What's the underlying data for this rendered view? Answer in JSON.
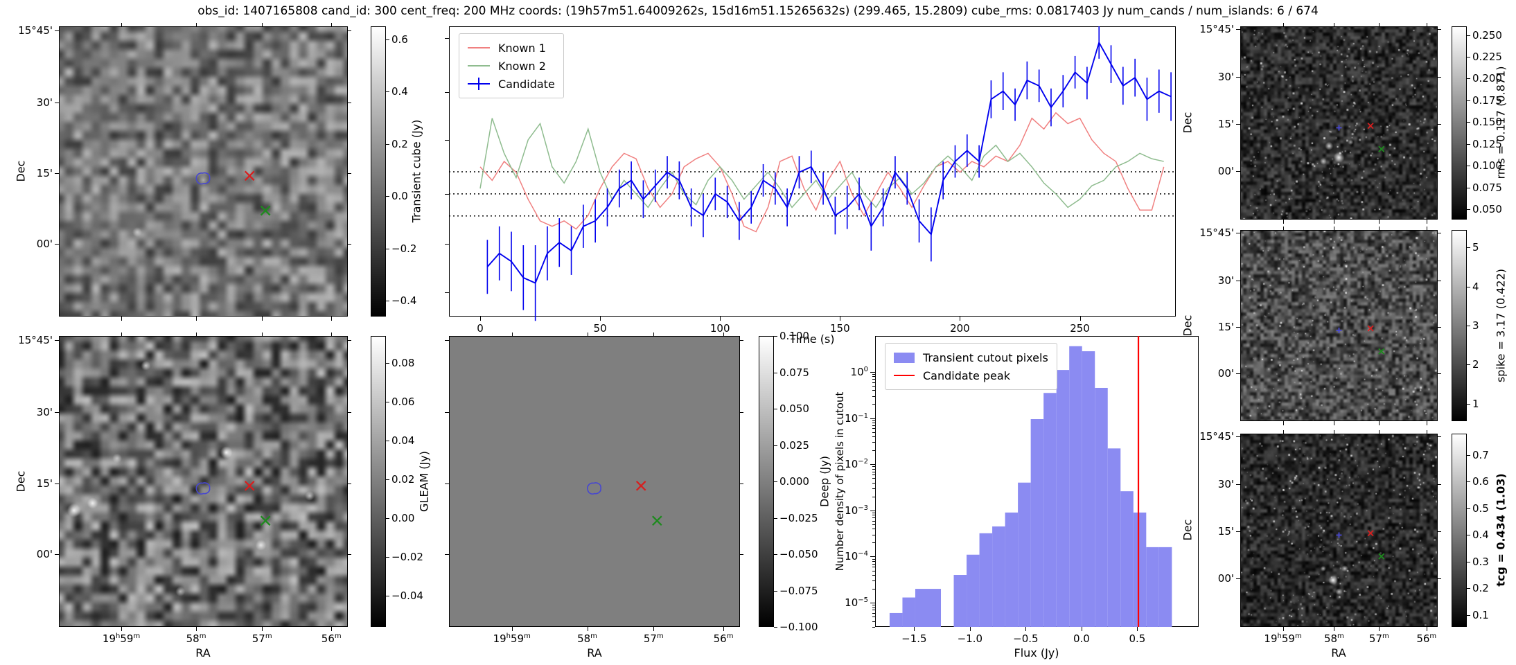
{
  "title": "obs_id: 1407165808 cand_id: 300 cent_freq: 200 MHz coords: (19h57m51.64009262s, 15d16m51.15265632s) (299.465, 15.2809) cube_rms: 0.0817403 Jy num_cands / num_islands: 6 / 674",
  "labels": {
    "dec": "Dec",
    "ra": "RA",
    "dec_ticks": [
      "15°45'",
      "30'",
      "15'",
      "00'"
    ],
    "ra_ticks": [
      "19h59m",
      "58m",
      "57m",
      "56m"
    ]
  },
  "panels": {
    "transient_cube": {
      "colorbar": {
        "label": "Transient cube (Jy)",
        "tick_labels": [
          "0.6",
          "0.4",
          "0.2",
          "0.0",
          "−0.2",
          "−0.4"
        ],
        "tick_values": [
          0.6,
          0.4,
          0.2,
          0,
          -0.2,
          -0.4
        ],
        "vmin": -0.46,
        "vmax": 0.65
      }
    },
    "gleam": {
      "colorbar": {
        "label": "GLEAM (Jy)",
        "tick_labels": [
          "0.08",
          "0.06",
          "0.04",
          "0.02",
          "0.00",
          "−0.02",
          "−0.04"
        ],
        "tick_values": [
          0.08,
          0.06,
          0.04,
          0.02,
          0,
          -0.02,
          -0.04
        ],
        "vmin": -0.056,
        "vmax": 0.094
      }
    },
    "deep": {
      "colorbar": {
        "label": "Deep (Jy)",
        "tick_labels": [
          "0.100",
          "0.075",
          "0.050",
          "0.025",
          "0.000",
          "−0.025",
          "−0.050",
          "−0.075",
          "−0.100"
        ],
        "tick_values": [
          0.1,
          0.075,
          0.05,
          0.025,
          0,
          -0.025,
          -0.05,
          -0.075,
          -0.1
        ],
        "vmin": -0.1,
        "vmax": 0.1
      }
    },
    "rms": {
      "colorbar": {
        "label": "rms = 0.117 (0.871)",
        "tick_labels": [
          "0.250",
          "0.225",
          "0.200",
          "0.175",
          "0.150",
          "0.125",
          "0.100",
          "0.075",
          "0.050"
        ],
        "tick_values": [
          0.25,
          0.225,
          0.2,
          0.175,
          0.15,
          0.125,
          0.1,
          0.075,
          0.05
        ],
        "vmin": 0.038,
        "vmax": 0.26
      }
    },
    "spike": {
      "colorbar": {
        "label": "spike = 3.17 (0.422)",
        "tick_labels": [
          "5",
          "4",
          "3",
          "2",
          "1"
        ],
        "tick_values": [
          5,
          4,
          3,
          2,
          1
        ],
        "vmin": 0.55,
        "vmax": 5.45
      }
    },
    "tcg": {
      "colorbar": {
        "label": "tcg = 0.434 (1.03)",
        "tick_labels": [
          "0.7",
          "0.6",
          "0.5",
          "0.4",
          "0.3",
          "0.2",
          "0.1"
        ],
        "tick_values": [
          0.7,
          0.6,
          0.5,
          0.4,
          0.3,
          0.2,
          0.1
        ],
        "vmin": 0.055,
        "vmax": 0.78,
        "bold": true
      }
    },
    "lightcurve": {
      "legend": [
        "Known 1",
        "Known 2",
        "Candidate"
      ],
      "xlabel": "Time (s)",
      "x_tick_labels": [
        "0",
        "50",
        "100",
        "150",
        "200",
        "250"
      ],
      "x_tick_values": [
        0,
        50,
        100,
        150,
        200,
        250
      ]
    },
    "histogram": {
      "legend": [
        "Transient cutout pixels",
        "Candidate peak"
      ],
      "xlabel": "Flux (Jy)",
      "ylabel": "Number density of pixels in cutout",
      "x_tick_labels": [
        "−1.5",
        "−1.0",
        "−0.5",
        "0.0",
        "0.5"
      ],
      "x_tick_values": [
        -1.5,
        -1,
        -0.5,
        0,
        0.5
      ],
      "y_tick_labels": [
        "10^0",
        "10^−1",
        "10^−2",
        "10^−3",
        "10^−4",
        "10^−5"
      ],
      "y_tick_values": [
        1,
        0.1,
        0.01,
        0.001,
        0.0001,
        1e-05
      ]
    }
  },
  "markers": {
    "candidate": {
      "rel_x": 0.5,
      "rel_y": 0.525,
      "color": "#4747d1",
      "style": "contour"
    },
    "known1": {
      "rel_x": 0.66,
      "rel_y": 0.515,
      "color": "#d62020",
      "style": "x"
    },
    "known2": {
      "rel_x": 0.715,
      "rel_y": 0.635,
      "color": "#1e8a1e",
      "style": "x"
    }
  },
  "chart_data": [
    {
      "id": "lightcurve",
      "type": "line",
      "xlabel": "Time (s)",
      "xlim": [
        -13,
        290
      ],
      "ylim": [
        -0.454,
        0.62
      ],
      "threshold_lines": [
        0.0817,
        0,
        -0.0817
      ],
      "legend_position": "upper left",
      "series": [
        {
          "name": "Known 1",
          "color": "#f08080",
          "x_start": 0,
          "x_step": 5,
          "values": [
            0.1,
            0.05,
            0.12,
            0.08,
            -0.02,
            -0.1,
            -0.12,
            -0.1,
            -0.13,
            -0.08,
            0.02,
            0.1,
            0.15,
            0.13,
            0.02,
            -0.05,
            0.0,
            0.1,
            0.13,
            0.15,
            0.1,
            0.0,
            -0.12,
            -0.14,
            -0.05,
            0.12,
            0.14,
            0.02,
            -0.06,
            0.05,
            0.12,
            0.0,
            -0.08,
            0.0,
            0.08,
            0.02,
            -0.05,
            0.03,
            0.1,
            0.12,
            0.08,
            0.12,
            0.1,
            0.14,
            0.12,
            0.18,
            0.28,
            0.24,
            0.3,
            0.26,
            0.28,
            0.2,
            0.15,
            0.12,
            0.02,
            -0.06,
            -0.06,
            0.1
          ]
        },
        {
          "name": "Known 2",
          "color": "#8fbc8f",
          "x_start": 0,
          "x_step": 5,
          "values": [
            0.02,
            0.28,
            0.15,
            0.06,
            0.2,
            0.26,
            0.1,
            0.04,
            0.12,
            0.24,
            0.08,
            -0.02,
            0.05,
            0.0,
            -0.05,
            0.02,
            0.08,
            0.0,
            -0.04,
            0.05,
            0.1,
            0.05,
            -0.02,
            0.03,
            0.08,
            0.02,
            -0.05,
            0.0,
            0.05,
            -0.02,
            0.03,
            0.08,
            0.0,
            -0.05,
            0.02,
            0.06,
            0.0,
            0.04,
            0.1,
            0.14,
            0.1,
            0.05,
            0.14,
            0.18,
            0.12,
            0.15,
            0.1,
            0.04,
            0.0,
            -0.05,
            -0.02,
            0.03,
            0.05,
            0.1,
            0.12,
            0.15,
            0.13,
            0.12
          ]
        },
        {
          "name": "Candidate",
          "color": "#0000ee",
          "x_start": 3,
          "x_step": 5,
          "values": [
            -0.27,
            -0.22,
            -0.25,
            -0.31,
            -0.33,
            -0.22,
            -0.18,
            -0.21,
            -0.12,
            -0.1,
            -0.05,
            0.02,
            0.05,
            -0.02,
            0.03,
            0.08,
            0.05,
            -0.05,
            -0.08,
            0.0,
            -0.03,
            -0.1,
            -0.05,
            0.05,
            0.02,
            -0.05,
            0.08,
            0.1,
            0.02,
            -0.08,
            -0.05,
            0.0,
            -0.12,
            -0.05,
            0.08,
            0.02,
            -0.1,
            -0.15,
            0.05,
            0.12,
            0.16,
            0.12,
            0.35,
            0.38,
            0.33,
            0.42,
            0.4,
            0.32,
            0.38,
            0.45,
            0.41,
            0.56,
            0.48,
            0.4,
            0.43,
            0.35,
            0.38,
            0.36
          ],
          "errors": [
            0.1,
            0.1,
            0.11,
            0.12,
            0.14,
            0.1,
            0.09,
            0.09,
            0.08,
            0.08,
            0.07,
            0.07,
            0.07,
            0.07,
            0.06,
            0.06,
            0.07,
            0.07,
            0.08,
            0.06,
            0.06,
            0.07,
            0.06,
            0.06,
            0.06,
            0.07,
            0.06,
            0.06,
            0.06,
            0.07,
            0.08,
            0.06,
            0.09,
            0.07,
            0.06,
            0.06,
            0.08,
            0.1,
            0.07,
            0.06,
            0.06,
            0.06,
            0.07,
            0.07,
            0.06,
            0.07,
            0.06,
            0.07,
            0.06,
            0.06,
            0.06,
            0.06,
            0.07,
            0.07,
            0.07,
            0.08,
            0.08,
            0.09
          ]
        }
      ]
    },
    {
      "id": "histogram",
      "type": "bar",
      "xlabel": "Flux (Jy)",
      "ylabel": "Number density of pixels in cutout",
      "xlim": [
        -1.85,
        1.05
      ],
      "ylim": [
        3e-06,
        6
      ],
      "yscale": "log",
      "bin_start": -1.72,
      "bin_width": 0.115,
      "densities": [
        6e-06,
        1.3e-05,
        2e-05,
        2e-05,
        0,
        4e-05,
        0.00011,
        0.00032,
        0.00045,
        0.0009,
        0.004,
        0.095,
        0.35,
        1.1,
        3.6,
        2.8,
        0.45,
        0.022,
        0.0026,
        0.0009,
        0.00016,
        0.00016
      ],
      "candidate_peak": 0.51,
      "bar_color": "#8b8bf2",
      "line_color": "#ff0000",
      "legend_position": "upper left"
    }
  ]
}
